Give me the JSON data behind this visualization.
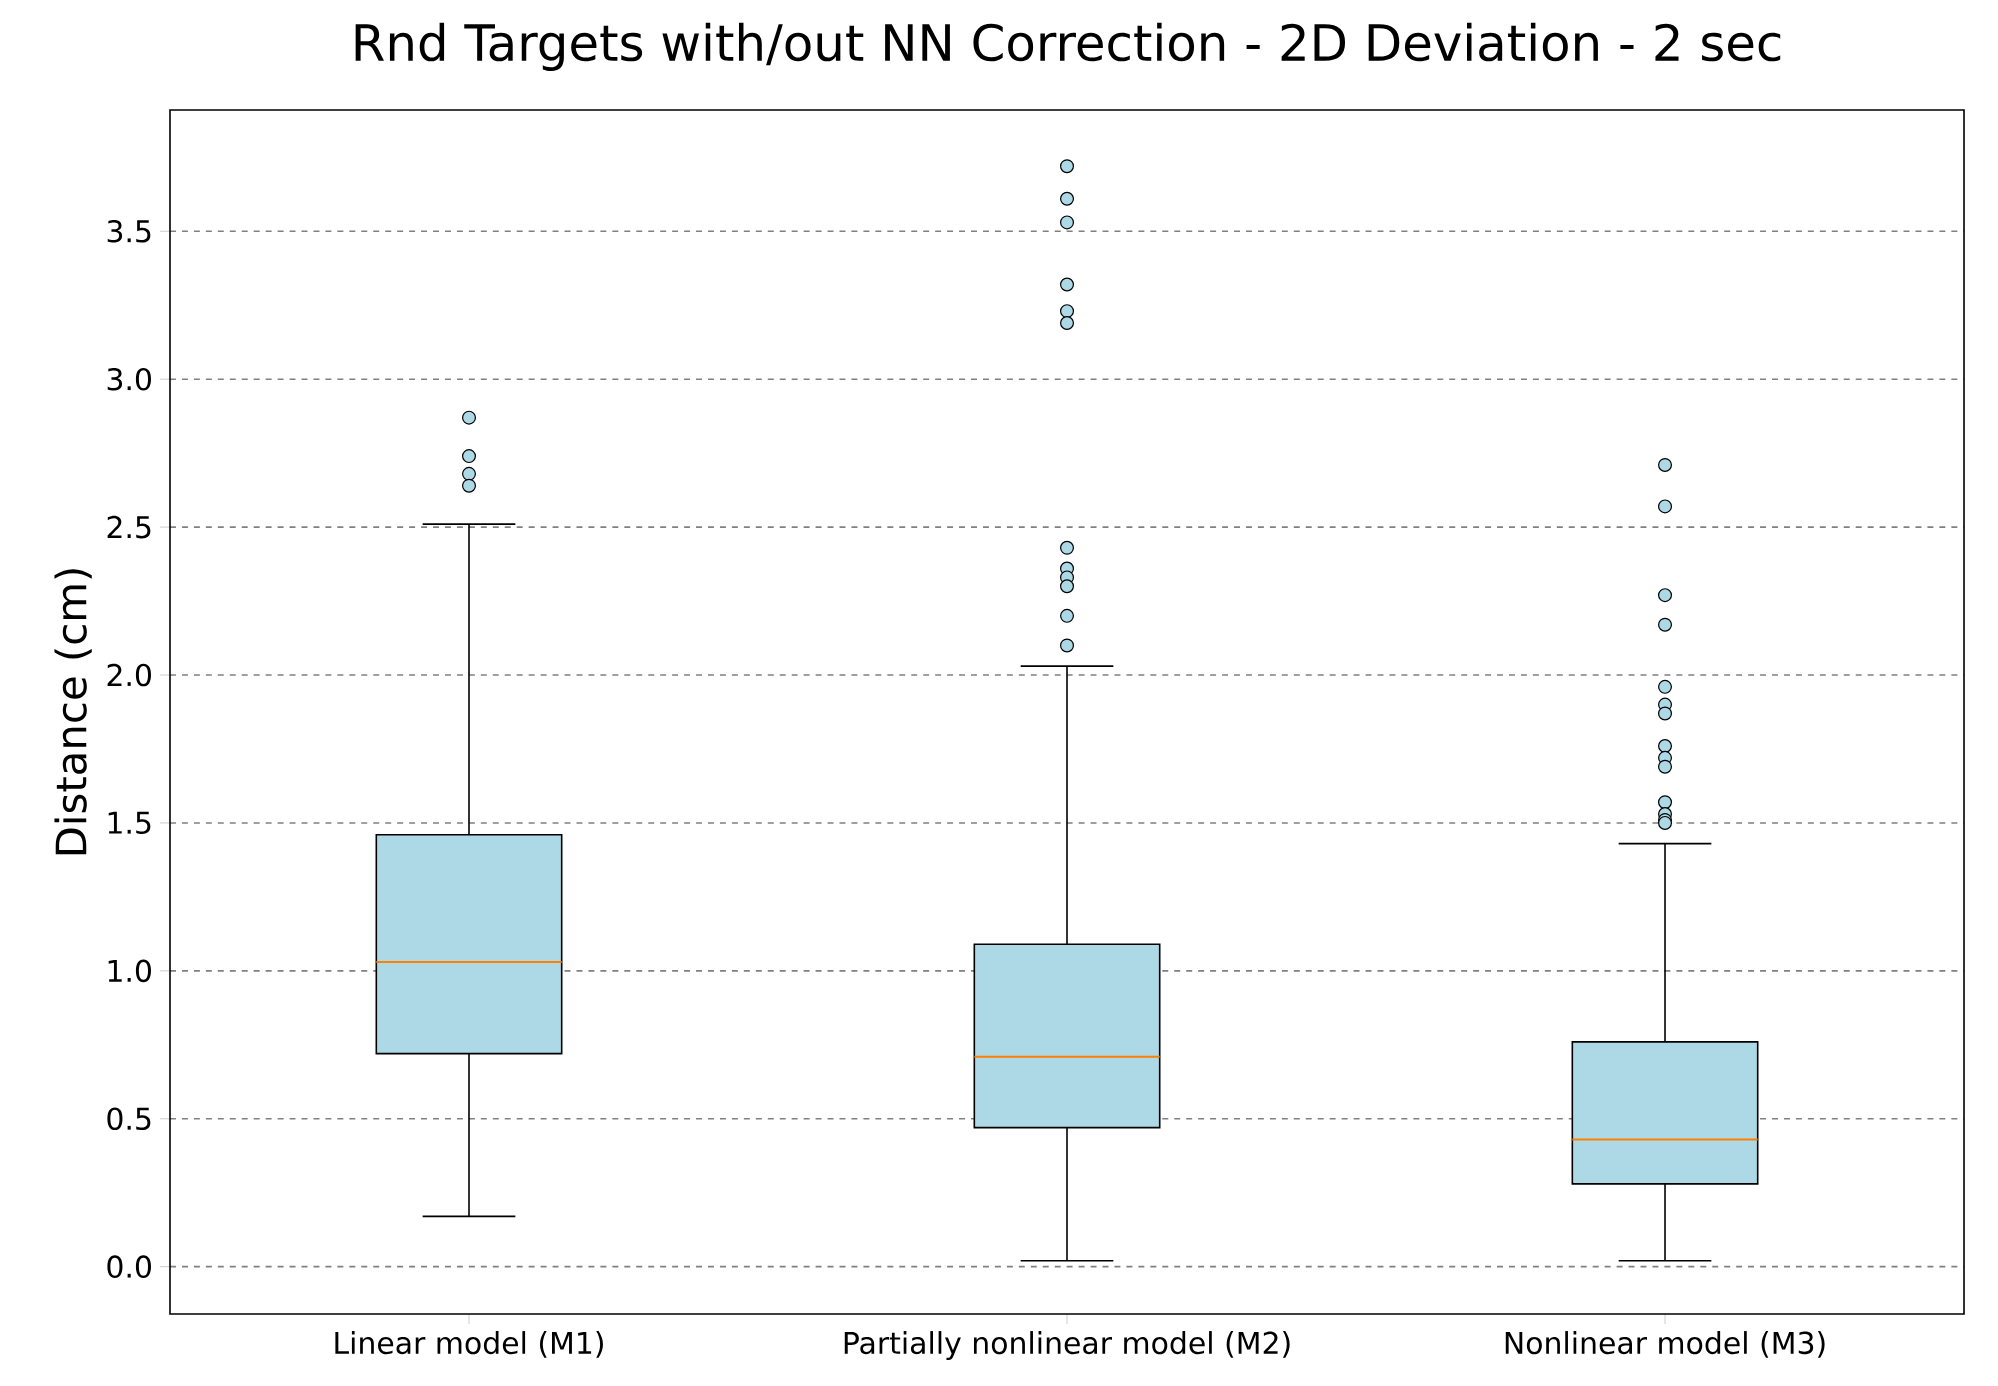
{
  "chart_data": {
    "type": "box",
    "title": "Rnd Targets with/out NN Correction - 2D Deviation - 2 sec",
    "ylabel": "Distance (cm)",
    "categories": [
      "Linear model (M1)",
      "Partially nonlinear model (M2)",
      "Nonlinear model (M3)"
    ],
    "series": [
      {
        "color": "#add8e6",
        "boxes": [
          {
            "low": 0.17,
            "q1": 0.72,
            "median": 1.03,
            "q3": 1.46,
            "high": 2.51,
            "outliers": [
              2.87,
              2.74,
              2.68,
              2.64
            ]
          },
          {
            "low": 0.02,
            "q1": 0.47,
            "median": 0.71,
            "q3": 1.09,
            "high": 2.03,
            "outliers": [
              3.72,
              3.61,
              3.53,
              3.32,
              3.23,
              3.19,
              2.43,
              2.36,
              2.33,
              2.3,
              2.2,
              2.1
            ]
          },
          {
            "low": 0.02,
            "q1": 0.28,
            "median": 0.43,
            "q3": 0.76,
            "high": 1.43,
            "outliers": [
              2.71,
              2.57,
              2.27,
              2.17,
              1.96,
              1.9,
              1.87,
              1.76,
              1.72,
              1.69,
              1.57,
              1.53,
              1.51,
              1.5
            ]
          }
        ]
      }
    ],
    "ylim": [
      -0.16,
      3.91
    ],
    "yticks": [
      {
        "value": 0,
        "label": "0.0"
      },
      {
        "value": 0.5,
        "label": "0.5"
      },
      {
        "value": 1,
        "label": "1.0"
      },
      {
        "value": 1.5,
        "label": "1.5"
      },
      {
        "value": 2,
        "label": "2.0"
      },
      {
        "value": 2.5,
        "label": "2.5"
      },
      {
        "value": 3,
        "label": "3.0"
      },
      {
        "value": 3.5,
        "label": "3.5"
      }
    ],
    "grid": "y"
  }
}
